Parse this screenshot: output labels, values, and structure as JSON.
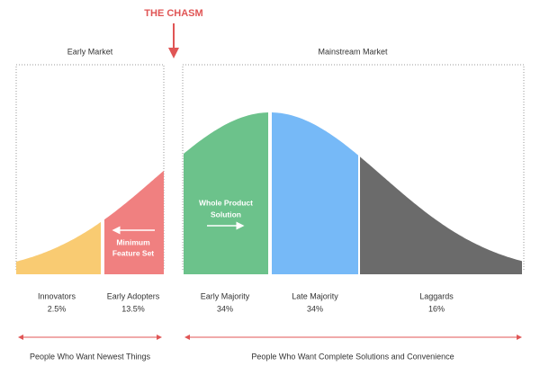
{
  "title": "THE CHASM",
  "markets": [
    {
      "label": "Early Market"
    },
    {
      "label": "Mainstream Market"
    }
  ],
  "segments": [
    {
      "label": "Innovators",
      "share": "2.5%",
      "color": "#f9cb72"
    },
    {
      "label": "Early Adopters",
      "share": "13.5%",
      "color": "#f08080"
    },
    {
      "label": "Early Majority",
      "share": "34%",
      "color": "#6cc28b"
    },
    {
      "label": "Late Majority",
      "share": "34%",
      "color": "#76b9f7"
    },
    {
      "label": "Laggards",
      "share": "16%",
      "color": "#6b6b6b"
    }
  ],
  "notes": [
    {
      "lines": [
        "Minimum",
        "Feature Set"
      ]
    },
    {
      "lines": [
        "Whole Product",
        "Solution"
      ]
    }
  ],
  "audiences": [
    "People Who Want Newest Things",
    "People Who Want Complete Solutions and Convenience"
  ]
}
